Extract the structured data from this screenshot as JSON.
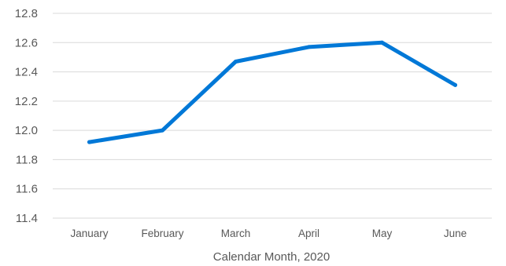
{
  "chart_data": {
    "type": "line",
    "title": "",
    "xlabel": "Calendar Month, 2020",
    "ylabel": "",
    "categories": [
      "January",
      "February",
      "March",
      "April",
      "May",
      "June"
    ],
    "series": [
      {
        "values": [
          11.92,
          12.0,
          12.47,
          12.57,
          12.6,
          12.31
        ],
        "color": "#0078d7"
      }
    ],
    "ylim": [
      11.4,
      12.8
    ],
    "yticks": [
      11.4,
      11.6,
      11.8,
      12.0,
      12.2,
      12.4,
      12.6,
      12.8
    ],
    "ytick_labels": [
      "11.4",
      "11.6",
      "11.8",
      "12.0",
      "12.2",
      "12.4",
      "12.6",
      "12.8"
    ],
    "grid": true,
    "gridline_color": "#d9d9d9",
    "legend": "none"
  }
}
